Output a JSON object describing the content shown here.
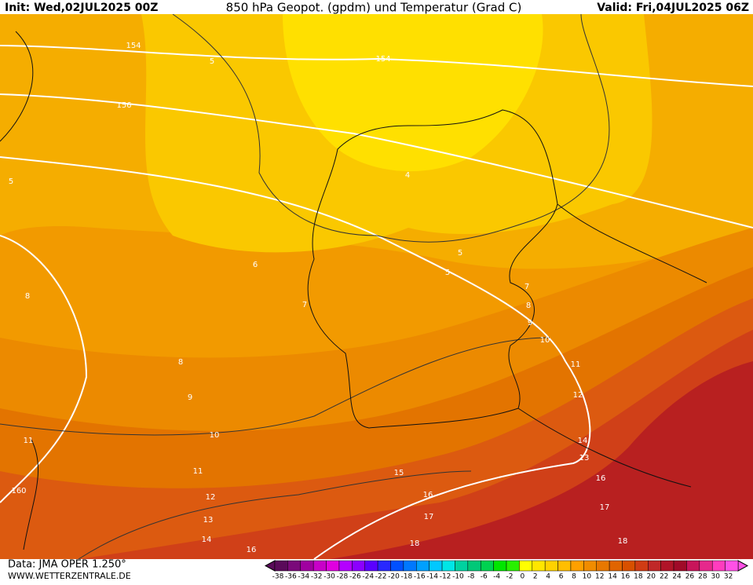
{
  "header": {
    "init": "Init: Wed,02JUL2025 00Z",
    "title": "850 hPa Geopot. (gpdm) und Temperatur (Grad C)",
    "valid": "Valid: Fri,04JUL2025 06Z"
  },
  "map": {
    "contour_labels": [
      154,
      5,
      156,
      154,
      5,
      4,
      6,
      5,
      5,
      8,
      7,
      7,
      8,
      9,
      10,
      8,
      9,
      10,
      11,
      11,
      12,
      11,
      12,
      14,
      13,
      15,
      16,
      16,
      17,
      17,
      13,
      14,
      16,
      18,
      18,
      160
    ]
  },
  "footer": {
    "data": "Data: JMA OPER 1.250°",
    "url": "WWW.WETTERZENTRALE.DE"
  },
  "colorbar": {
    "ticks": [
      -38,
      -36,
      -34,
      -32,
      -30,
      -28,
      -26,
      -24,
      -22,
      -20,
      -18,
      -16,
      -14,
      -12,
      -10,
      -8,
      -6,
      -4,
      -2,
      0,
      2,
      4,
      6,
      8,
      10,
      12,
      14,
      16,
      18,
      20,
      22,
      24,
      26,
      28,
      30,
      32
    ],
    "colors": [
      "#5a0a5a",
      "#7a0a7a",
      "#a000a0",
      "#c800c8",
      "#e000e0",
      "#b400ff",
      "#8c00ff",
      "#5a00ff",
      "#2828ff",
      "#0050ff",
      "#0078ff",
      "#00a0ff",
      "#00c8ff",
      "#00e6e6",
      "#00d2a0",
      "#00c878",
      "#00d250",
      "#00e600",
      "#28f000",
      "#ffff00",
      "#ffe600",
      "#ffd200",
      "#ffbe00",
      "#ffa000",
      "#f08c00",
      "#e87800",
      "#e06400",
      "#d85000",
      "#d03c14",
      "#c02828",
      "#b01428",
      "#a00a28",
      "#c8145a",
      "#e6288c",
      "#ff3cbe",
      "#ff50e6"
    ]
  }
}
